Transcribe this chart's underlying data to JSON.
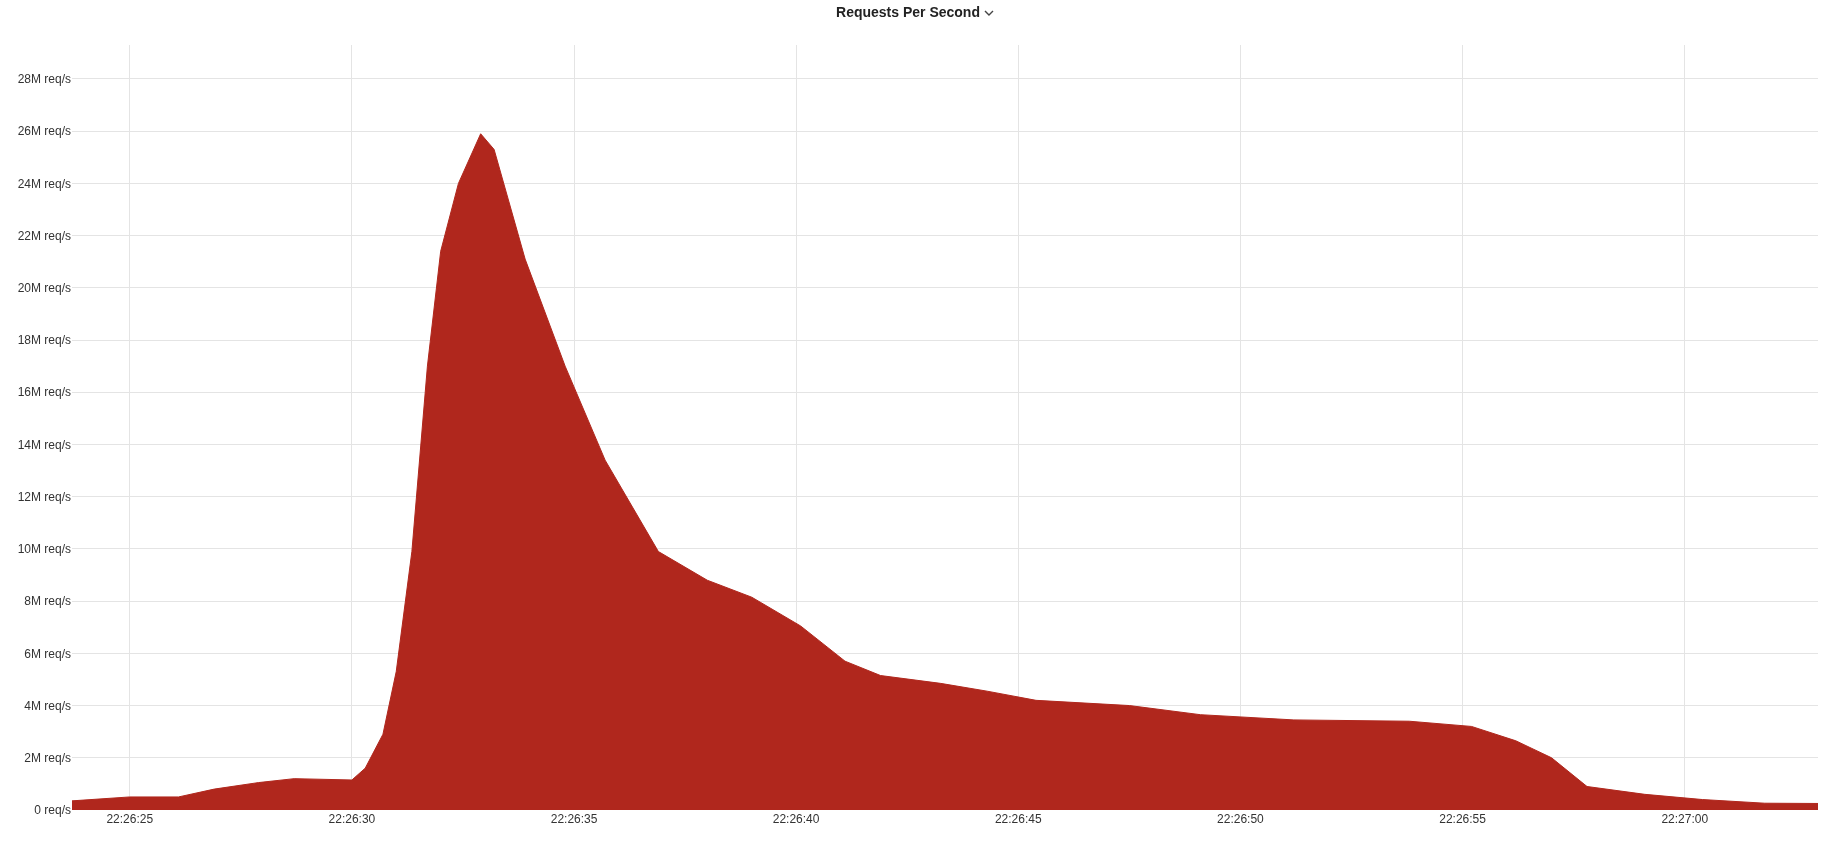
{
  "chart_data": {
    "type": "area",
    "title": "Requests Per Second",
    "x": [
      22.439917,
      22.440278,
      22.440583,
      22.440806,
      22.441083,
      22.441306,
      22.441667,
      22.44175,
      22.441861,
      22.441944,
      22.442042,
      22.442139,
      22.442222,
      22.442333,
      22.442472,
      22.442556,
      22.44275,
      22.443,
      22.44325,
      22.443583,
      22.443889,
      22.444167,
      22.444472,
      22.44475,
      22.444972,
      22.445347,
      22.445639,
      22.445944,
      22.446528,
      22.446972,
      22.447556,
      22.448278,
      22.448667,
      22.448944,
      22.449167,
      22.449389,
      22.44975,
      22.450111,
      22.4505,
      22.450833
    ],
    "series": [
      {
        "color": "#b0271d",
        "values": [
          0.35,
          0.5,
          0.5,
          0.8,
          1.05,
          1.2,
          1.15,
          1.6,
          2.9,
          5.3,
          9.9,
          17,
          21.4,
          24,
          25.9,
          25.3,
          21.1,
          17,
          13.4,
          9.9,
          8.8,
          8.15,
          7.05,
          5.7,
          5.15,
          4.85,
          4.55,
          4.2,
          4.0,
          3.65,
          3.45,
          3.4,
          3.2,
          2.65,
          2.0,
          0.9,
          0.6,
          0.4,
          0.26,
          0.25
        ]
      }
    ],
    "xlim": [
      22.439917,
      22.450833
    ],
    "xticks": [
      {
        "value": 22.440278,
        "label": "22:26:25"
      },
      {
        "value": 22.441667,
        "label": "22:26:30"
      },
      {
        "value": 22.443056,
        "label": "22:26:35"
      },
      {
        "value": 22.444444,
        "label": "22:26:40"
      },
      {
        "value": 22.445833,
        "label": "22:26:45"
      },
      {
        "value": 22.447222,
        "label": "22:26:50"
      },
      {
        "value": 22.448611,
        "label": "22:26:55"
      },
      {
        "value": 22.45,
        "label": "22:27:00"
      }
    ],
    "ylim": [
      0,
      29.3
    ],
    "yticks": [
      {
        "value": 0,
        "label": "0 req/s"
      },
      {
        "value": 2,
        "label": "2M req/s"
      },
      {
        "value": 4,
        "label": "4M req/s"
      },
      {
        "value": 6,
        "label": "6M req/s"
      },
      {
        "value": 8,
        "label": "8M req/s"
      },
      {
        "value": 10,
        "label": "10M req/s"
      },
      {
        "value": 12,
        "label": "12M req/s"
      },
      {
        "value": 14,
        "label": "14M req/s"
      },
      {
        "value": 16,
        "label": "16M req/s"
      },
      {
        "value": 18,
        "label": "18M req/s"
      },
      {
        "value": 20,
        "label": "20M req/s"
      },
      {
        "value": 22,
        "label": "22M req/s"
      },
      {
        "value": 24,
        "label": "24M req/s"
      },
      {
        "value": 26,
        "label": "26M req/s"
      },
      {
        "value": 28,
        "label": "28M req/s"
      }
    ],
    "grid": true
  }
}
